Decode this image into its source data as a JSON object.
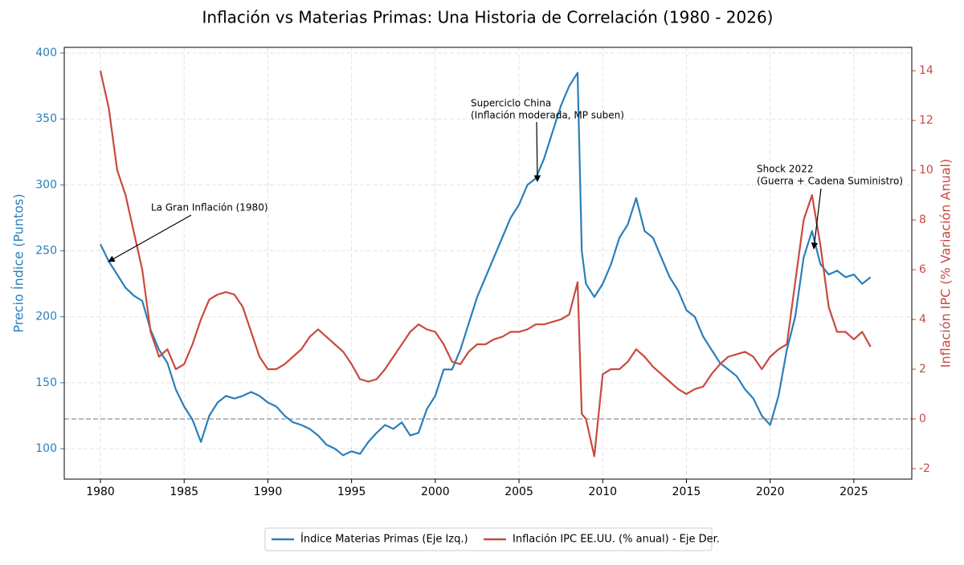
{
  "chart_data": {
    "type": "line",
    "title": "Inflación vs Materias Primas: Una Historia de Correlación (1980 - 2026)",
    "ylabel": "Precio Índice (Puntos)",
    "y2label": "Inflación IPC (% Variación Anual)",
    "x": [
      1980,
      1980.5,
      1981,
      1981.5,
      1982,
      1982.5,
      1983,
      1983.5,
      1984,
      1984.5,
      1985,
      1985.5,
      1986,
      1986.5,
      1987,
      1987.5,
      1988,
      1988.5,
      1989,
      1989.5,
      1990,
      1990.5,
      1991,
      1991.5,
      1992,
      1992.5,
      1993,
      1993.5,
      1994,
      1994.5,
      1995,
      1995.5,
      1996,
      1996.5,
      1997,
      1997.5,
      1998,
      1998.5,
      1999,
      1999.5,
      2000,
      2000.5,
      2001,
      2001.5,
      2002,
      2002.5,
      2003,
      2003.5,
      2004,
      2004.5,
      2005,
      2005.5,
      2006,
      2006.5,
      2007,
      2007.5,
      2008,
      2008.5,
      2008.75,
      2009,
      2009.5,
      2010,
      2010.5,
      2011,
      2011.5,
      2012,
      2012.5,
      2013,
      2013.5,
      2014,
      2014.5,
      2015,
      2015.5,
      2016,
      2016.5,
      2017,
      2017.5,
      2018,
      2018.5,
      2019,
      2019.5,
      2020,
      2020.5,
      2021,
      2021.5,
      2022,
      2022.5,
      2023,
      2023.5,
      2024,
      2024.5,
      2025,
      2025.5,
      2026
    ],
    "series": [
      {
        "name": "Índice Materias Primas (Eje Izq.)",
        "color": "#2a7fba",
        "axis": "y",
        "values": [
          255,
          242,
          232,
          222,
          216,
          212,
          190,
          175,
          165,
          145,
          132,
          122,
          105,
          125,
          135,
          140,
          138,
          140,
          143,
          140,
          135,
          132,
          125,
          120,
          118,
          115,
          110,
          103,
          100,
          95,
          98,
          96,
          105,
          112,
          118,
          115,
          120,
          110,
          112,
          130,
          140,
          160,
          160,
          175,
          195,
          215,
          230,
          245,
          260,
          275,
          285,
          300,
          305,
          320,
          340,
          360,
          375,
          385,
          250,
          225,
          215,
          225,
          240,
          260,
          270,
          290,
          265,
          260,
          245,
          230,
          220,
          205,
          200,
          185,
          175,
          165,
          160,
          155,
          145,
          138,
          125,
          118,
          140,
          175,
          200,
          245,
          265,
          240,
          232,
          235,
          230,
          232,
          225,
          230
        ]
      },
      {
        "name": "Inflación IPC EE.UU. (% anual) - Eje Der.",
        "color": "#c94a3f",
        "axis": "y2",
        "values": [
          14,
          12.5,
          10,
          9,
          7.5,
          6,
          3.5,
          2.5,
          2.8,
          2,
          2.2,
          3,
          4,
          4.8,
          5,
          5.1,
          5,
          4.5,
          3.5,
          2.5,
          2,
          2,
          2.2,
          2.5,
          2.8,
          3.3,
          3.6,
          3.3,
          3,
          2.7,
          2.2,
          1.6,
          1.5,
          1.6,
          2,
          2.5,
          3,
          3.5,
          3.8,
          3.6,
          3.5,
          3,
          2.3,
          2.2,
          2.7,
          3,
          3,
          3.2,
          3.3,
          3.5,
          3.5,
          3.6,
          3.8,
          3.8,
          3.9,
          4,
          4.2,
          5.5,
          0.2,
          0,
          -1.5,
          1.8,
          2,
          2,
          2.3,
          2.8,
          2.5,
          2.1,
          1.8,
          1.5,
          1.2,
          1,
          1.2,
          1.3,
          1.8,
          2.2,
          2.5,
          2.6,
          2.7,
          2.5,
          2,
          2.5,
          2.8,
          3,
          5.5,
          8,
          9,
          7,
          4.5,
          3.5,
          3.5,
          3.2,
          3.5,
          2.9
        ]
      }
    ],
    "xlim": [
      1977.84,
      2028.46
    ],
    "xticks": [
      1980,
      1985,
      1990,
      1995,
      2000,
      2005,
      2010,
      2015,
      2020,
      2025
    ],
    "ylim": [
      76.9,
      404.3
    ],
    "yticks": [
      100,
      150,
      200,
      250,
      300,
      350,
      400
    ],
    "y2lim": [
      -2.42,
      14.94
    ],
    "y2ticks": [
      -2,
      0,
      2,
      4,
      6,
      8,
      10,
      12,
      14
    ],
    "reference_line_y2": 0,
    "grid": true,
    "legend": "bottom",
    "annotations": [
      {
        "lines": [
          "La Gran Inflación (1980)"
        ]
      },
      {
        "lines": [
          "Superciclo China",
          "(Inflación moderada, MP suben)"
        ]
      },
      {
        "lines": [
          "Shock 2022",
          "(Guerra + Cadena Suministro)"
        ]
      }
    ]
  }
}
